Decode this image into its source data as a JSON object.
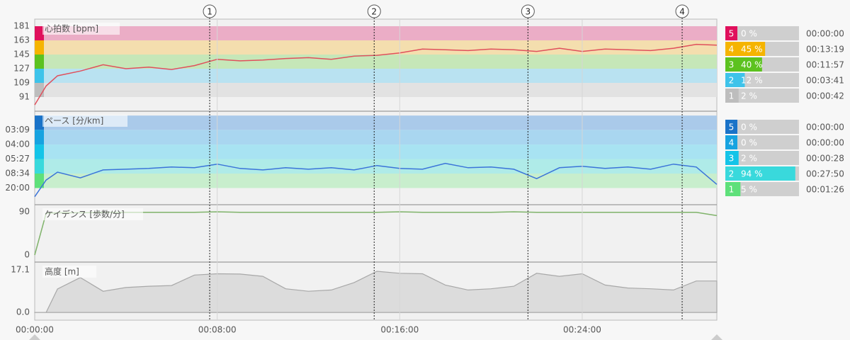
{
  "time": {
    "x": [
      0,
      0.5,
      1,
      2,
      3,
      4,
      5,
      6,
      7,
      8,
      9,
      10,
      11,
      12,
      13,
      14,
      15,
      16,
      17,
      18,
      19,
      20,
      21,
      22,
      23,
      24,
      25,
      26,
      27,
      28,
      29,
      29.9
    ],
    "xlim": [
      0,
      29.9
    ],
    "xticks": [
      {
        "value": 0,
        "label": "00:00:00"
      },
      {
        "value": 8,
        "label": "00:08:00"
      },
      {
        "value": 16,
        "label": "00:16:00"
      },
      {
        "value": 24,
        "label": "00:24:00"
      }
    ],
    "markers": [
      {
        "label": 1,
        "x": 7.67
      },
      {
        "label": 2,
        "x": 14.88
      },
      {
        "label": 3,
        "x": 21.62
      },
      {
        "label": 4,
        "x": 28.38
      }
    ]
  },
  "chart_data": [
    {
      "type": "line",
      "title": "心拍数 [bpm]",
      "color": "#e0505c",
      "ylim": [
        73,
        190
      ],
      "yticks": [
        91,
        109,
        127,
        145,
        163,
        181
      ],
      "values": [
        81,
        105,
        118,
        124,
        132,
        127,
        129,
        126,
        131,
        139,
        137,
        138,
        140,
        141,
        139,
        143,
        144,
        147,
        152,
        151,
        150,
        152,
        151,
        149,
        153,
        149,
        152,
        151,
        150,
        153,
        158,
        157
      ],
      "zones": [
        {
          "zone": 5,
          "from": 163,
          "to": 181,
          "color": "#e0105c",
          "band_color": "#ebadc6",
          "percent": 0,
          "percent_label": "0 %",
          "time": "00:00:00"
        },
        {
          "zone": 4,
          "from": 145,
          "to": 163,
          "color": "#f5b400",
          "band_color": "#f4deae",
          "percent": 45,
          "percent_label": "45 %",
          "time": "00:13:19"
        },
        {
          "zone": 3,
          "from": 127,
          "to": 145,
          "color": "#5cc21f",
          "band_color": "#c6e7b8",
          "percent": 40,
          "percent_label": "40 %",
          "time": "00:11:57"
        },
        {
          "zone": 2,
          "from": 109,
          "to": 127,
          "color": "#3ec3ea",
          "band_color": "#b9e2f1",
          "percent": 12,
          "percent_label": "12 %",
          "time": "00:03:41"
        },
        {
          "zone": 1,
          "from": 91,
          "to": 109,
          "color": "#bdbdbd",
          "band_color": "#e2e2e2",
          "percent": 2,
          "percent_label": "2 %",
          "time": "00:00:42"
        }
      ]
    },
    {
      "type": "line",
      "title": "ペース [分/km]",
      "color": "#3b74d9",
      "ylim": [
        -1.6,
        24.2
      ],
      "yticks": [
        {
          "value": 19.05,
          "label": "03:09"
        },
        {
          "value": 15,
          "label": "04:00"
        },
        {
          "value": 11.01,
          "label": "05:27"
        },
        {
          "value": 7,
          "label": "08:34"
        },
        {
          "value": 3,
          "label": "20:00"
        }
      ],
      "values": [
        0.6,
        5.2,
        7.4,
        5.8,
        8.0,
        8.2,
        8.4,
        8.8,
        8.6,
        9.6,
        8.4,
        8.0,
        8.6,
        8.2,
        8.6,
        8.0,
        9.2,
        8.4,
        8.2,
        9.8,
        8.6,
        8.8,
        8.2,
        5.6,
        8.6,
        9.0,
        8.4,
        8.8,
        8.2,
        9.6,
        8.8,
        4.0
      ],
      "zones": [
        {
          "zone": 5,
          "from": 19.05,
          "to": 23,
          "color": "#1a73c8",
          "band_color": "#aacaea",
          "percent": 0,
          "percent_label": "0 %",
          "time": "00:00:00"
        },
        {
          "zone": 4,
          "from": 15,
          "to": 19.05,
          "color": "#17a3e0",
          "band_color": "#a9d6f0",
          "percent": 0,
          "percent_label": "0 %",
          "time": "00:00:00"
        },
        {
          "zone": 3,
          "from": 11.01,
          "to": 15,
          "color": "#14c4e8",
          "band_color": "#a8e3f2",
          "percent": 2,
          "percent_label": "2 %",
          "time": "00:00:28"
        },
        {
          "zone": 2,
          "from": 7,
          "to": 11.01,
          "color": "#39d9dc",
          "band_color": "#afebe8",
          "percent": 94,
          "percent_label": "94 %",
          "time": "00:27:50"
        },
        {
          "zone": 1,
          "from": 3,
          "to": 7,
          "color": "#5ee07a",
          "band_color": "#c8eecd",
          "percent": 5,
          "percent_label": "5 %",
          "time": "00:01:26"
        }
      ]
    },
    {
      "type": "line",
      "title": "ケイデンス [歩数/分]",
      "color": "#7fb36a",
      "ylim": [
        -14.8,
        104.8
      ],
      "yticks": [
        0,
        90
      ],
      "values": [
        0,
        87,
        88,
        88,
        89,
        89,
        89,
        89,
        89,
        90,
        89,
        89,
        89,
        89,
        89,
        89,
        89,
        90,
        89,
        89,
        89,
        89,
        90,
        89,
        89,
        89,
        89,
        89,
        89,
        89,
        89,
        82
      ]
    },
    {
      "type": "area",
      "title": "高度 [m]",
      "color": "#a8a8a8",
      "fill": "#dcdcdc",
      "ylim": [
        -3.1,
        20.2
      ],
      "yticks": [
        {
          "value": 0,
          "label": "0.0"
        },
        17.1
      ],
      "values": [
        0,
        0,
        9.4,
        14,
        8.5,
        10,
        10.5,
        10.8,
        15,
        15.5,
        15.4,
        14.5,
        9.5,
        8.5,
        9,
        12,
        16.5,
        15.7,
        15.5,
        11,
        9,
        9.5,
        10.5,
        15.7,
        14.5,
        15.5,
        11,
        9.8,
        9.5,
        9,
        12.6,
        12.6
      ]
    }
  ]
}
